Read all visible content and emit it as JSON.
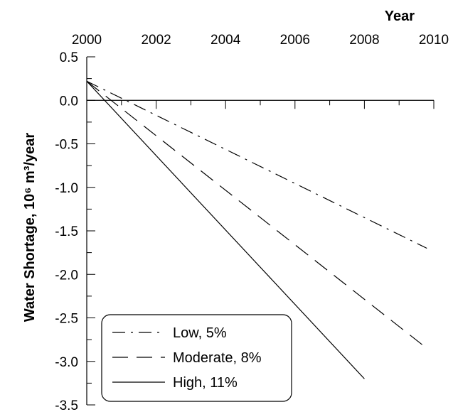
{
  "chart_data": {
    "type": "line",
    "title": "",
    "xlabel": "Year",
    "ylabel": "Water Shortage, 10⁶ m³/year",
    "xlim": [
      2000,
      2010
    ],
    "ylim": [
      -3.5,
      0.5
    ],
    "x_ticks": [
      "2000",
      "2002",
      "2004",
      "2006",
      "2008",
      "2010"
    ],
    "y_ticks": [
      "0.5",
      "0.0",
      "-0.5",
      "-1.0",
      "-1.5",
      "-2.0",
      "-2.5",
      "-3.0",
      "-3.5"
    ],
    "x_axis_position": "top",
    "grid": false,
    "legend_position": "bottom-left",
    "series": [
      {
        "name": "Low, 5%",
        "style": "dash-dot",
        "x": [
          2000,
          2009.8
        ],
        "y": [
          0.22,
          -1.7
        ]
      },
      {
        "name": "Moderate, 8%",
        "style": "dashed",
        "x": [
          2000,
          2009.8
        ],
        "y": [
          0.22,
          -2.85
        ]
      },
      {
        "name": "High, 11%",
        "style": "solid",
        "x": [
          2000,
          2008
        ],
        "y": [
          0.22,
          -3.2
        ]
      }
    ],
    "colors": {
      "line": "#000000",
      "background": "#ffffff"
    }
  }
}
